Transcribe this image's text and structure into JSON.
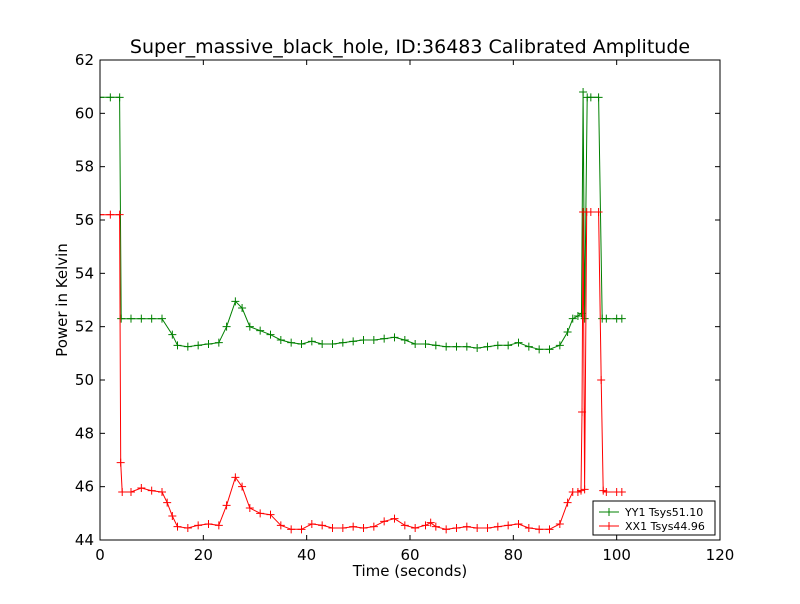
{
  "chart_data": {
    "type": "line",
    "title": "Super_massive_black_hole, ID:36483 Calibrated Amplitude",
    "xlabel": "Time (seconds)",
    "ylabel": "Power in Kelvin",
    "xlim": [
      0,
      120
    ],
    "ylim": [
      44,
      62
    ],
    "xticks": [
      0,
      20,
      40,
      60,
      80,
      100,
      120
    ],
    "yticks": [
      44,
      46,
      48,
      50,
      52,
      54,
      56,
      58,
      60,
      62
    ],
    "grid": false,
    "legend_position": "bottom-right",
    "marker": "+",
    "series": [
      {
        "name": "YY1 Tsys51.10",
        "color": "#008000",
        "points": [
          [
            0,
            60.6
          ],
          [
            2,
            60.6
          ],
          [
            3.8,
            60.6
          ],
          [
            4.1,
            52.3
          ],
          [
            6,
            52.3
          ],
          [
            8,
            52.3
          ],
          [
            10,
            52.3
          ],
          [
            12,
            52.3
          ],
          [
            14,
            51.7
          ],
          [
            15,
            51.3
          ],
          [
            17,
            51.25
          ],
          [
            19,
            51.3
          ],
          [
            21,
            51.35
          ],
          [
            23,
            51.4
          ],
          [
            24.5,
            52.0
          ],
          [
            26.2,
            52.95
          ],
          [
            27.5,
            52.7
          ],
          [
            29,
            52.0
          ],
          [
            31,
            51.85
          ],
          [
            33,
            51.7
          ],
          [
            35,
            51.5
          ],
          [
            37,
            51.4
          ],
          [
            39,
            51.35
          ],
          [
            41,
            51.45
          ],
          [
            43,
            51.35
          ],
          [
            45,
            51.35
          ],
          [
            47,
            51.4
          ],
          [
            49,
            51.45
          ],
          [
            51,
            51.5
          ],
          [
            53,
            51.5
          ],
          [
            55,
            51.55
          ],
          [
            57,
            51.6
          ],
          [
            59,
            51.5
          ],
          [
            61,
            51.35
          ],
          [
            63,
            51.35
          ],
          [
            65,
            51.3
          ],
          [
            67,
            51.25
          ],
          [
            69,
            51.25
          ],
          [
            71,
            51.25
          ],
          [
            73,
            51.2
          ],
          [
            75,
            51.25
          ],
          [
            77,
            51.3
          ],
          [
            79,
            51.3
          ],
          [
            81,
            51.4
          ],
          [
            83,
            51.25
          ],
          [
            85,
            51.15
          ],
          [
            87,
            51.15
          ],
          [
            89,
            51.3
          ],
          [
            90.5,
            51.8
          ],
          [
            91.5,
            52.3
          ],
          [
            92.5,
            52.4
          ],
          [
            93.2,
            52.5
          ],
          [
            93.5,
            60.8
          ],
          [
            93.8,
            52.3
          ],
          [
            94.3,
            60.6
          ],
          [
            95,
            60.6
          ],
          [
            96.5,
            60.6
          ],
          [
            97.2,
            52.3
          ],
          [
            98,
            52.3
          ],
          [
            100,
            52.3
          ],
          [
            101,
            52.3
          ]
        ]
      },
      {
        "name": "XX1 Tsys44.96",
        "color": "#ff0000",
        "points": [
          [
            0,
            56.2
          ],
          [
            2,
            56.2
          ],
          [
            3.8,
            56.2
          ],
          [
            4.0,
            46.9
          ],
          [
            4.3,
            45.8
          ],
          [
            6,
            45.8
          ],
          [
            8,
            45.95
          ],
          [
            10,
            45.85
          ],
          [
            12,
            45.8
          ],
          [
            13,
            45.4
          ],
          [
            14,
            44.9
          ],
          [
            15,
            44.5
          ],
          [
            17,
            44.45
          ],
          [
            19,
            44.55
          ],
          [
            21,
            44.6
          ],
          [
            23,
            44.55
          ],
          [
            24.5,
            45.3
          ],
          [
            26.2,
            46.35
          ],
          [
            27.5,
            46.0
          ],
          [
            29,
            45.2
          ],
          [
            31,
            45.0
          ],
          [
            33,
            44.95
          ],
          [
            35,
            44.55
          ],
          [
            37,
            44.4
          ],
          [
            39,
            44.4
          ],
          [
            41,
            44.6
          ],
          [
            43,
            44.55
          ],
          [
            45,
            44.45
          ],
          [
            47,
            44.45
          ],
          [
            49,
            44.5
          ],
          [
            51,
            44.45
          ],
          [
            53,
            44.5
          ],
          [
            55,
            44.7
          ],
          [
            57,
            44.8
          ],
          [
            59,
            44.55
          ],
          [
            61,
            44.45
          ],
          [
            63,
            44.55
          ],
          [
            64,
            44.65
          ],
          [
            65,
            44.5
          ],
          [
            67,
            44.4
          ],
          [
            69,
            44.45
          ],
          [
            71,
            44.5
          ],
          [
            73,
            44.45
          ],
          [
            75,
            44.45
          ],
          [
            77,
            44.5
          ],
          [
            79,
            44.55
          ],
          [
            81,
            44.6
          ],
          [
            83,
            44.45
          ],
          [
            85,
            44.4
          ],
          [
            87,
            44.4
          ],
          [
            89,
            44.6
          ],
          [
            90.5,
            45.4
          ],
          [
            91.5,
            45.8
          ],
          [
            92.5,
            45.8
          ],
          [
            93.1,
            45.85
          ],
          [
            93.3,
            48.8
          ],
          [
            93.5,
            56.3
          ],
          [
            93.8,
            45.9
          ],
          [
            94.2,
            56.3
          ],
          [
            95,
            56.3
          ],
          [
            96.5,
            56.3
          ],
          [
            97.0,
            50.0
          ],
          [
            97.4,
            45.85
          ],
          [
            98,
            45.8
          ],
          [
            100,
            45.8
          ],
          [
            101,
            45.8
          ]
        ]
      }
    ]
  }
}
